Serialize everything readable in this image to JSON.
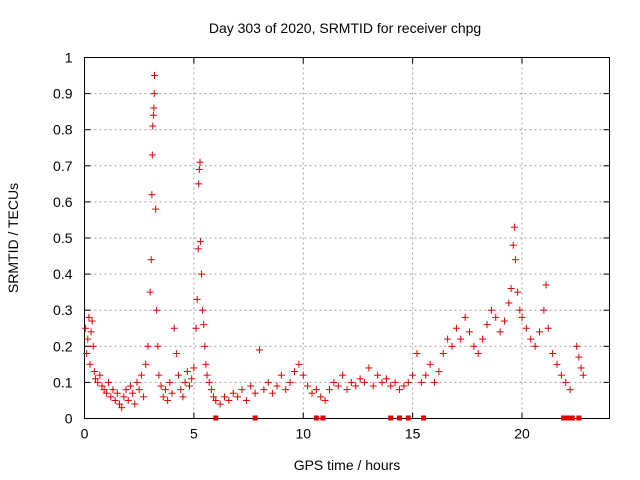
{
  "chart_data": {
    "type": "scatter",
    "title": "Day 303 of 2020, SRMTID for receiver chpg",
    "xlabel": "GPS time / hours",
    "ylabel": "SRMTID / TECUs",
    "xlim": [
      0,
      24
    ],
    "ylim": [
      0,
      1
    ],
    "xticks": [
      0,
      5,
      10,
      15,
      20
    ],
    "xtick_labels": [
      "0",
      "5",
      "10",
      "15",
      "20"
    ],
    "yticks": [
      0,
      0.1,
      0.2,
      0.3,
      0.4,
      0.5,
      0.6,
      0.7,
      0.8,
      0.9,
      1
    ],
    "ytick_labels": [
      "0",
      "0.1",
      "0.2",
      "0.3",
      "0.4",
      "0.5",
      "0.6",
      "0.7",
      "0.8",
      "0.9",
      "1"
    ],
    "grid": true,
    "marker": "+",
    "color": "#e00000",
    "series": [
      {
        "name": "SRMTID",
        "points": [
          [
            0.05,
            0.25
          ],
          [
            0.1,
            0.18
          ],
          [
            0.15,
            0.22
          ],
          [
            0.2,
            0.28
          ],
          [
            0.25,
            0.15
          ],
          [
            0.3,
            0.24
          ],
          [
            0.35,
            0.27
          ],
          [
            0.4,
            0.2
          ],
          [
            0.45,
            0.13
          ],
          [
            0.5,
            0.11
          ],
          [
            0.6,
            0.1
          ],
          [
            0.7,
            0.12
          ],
          [
            0.8,
            0.09
          ],
          [
            0.9,
            0.08
          ],
          [
            1.0,
            0.07
          ],
          [
            1.1,
            0.1
          ],
          [
            1.2,
            0.06
          ],
          [
            1.3,
            0.08
          ],
          [
            1.4,
            0.05
          ],
          [
            1.5,
            0.07
          ],
          [
            1.6,
            0.04
          ],
          [
            1.7,
            0.03
          ],
          [
            1.8,
            0.06
          ],
          [
            1.9,
            0.08
          ],
          [
            2.0,
            0.05
          ],
          [
            2.1,
            0.09
          ],
          [
            2.2,
            0.07
          ],
          [
            2.3,
            0.04
          ],
          [
            2.4,
            0.1
          ],
          [
            2.5,
            0.08
          ],
          [
            2.6,
            0.12
          ],
          [
            2.7,
            0.06
          ],
          [
            2.8,
            0.15
          ],
          [
            2.9,
            0.2
          ],
          [
            3.0,
            0.35
          ],
          [
            3.05,
            0.44
          ],
          [
            3.08,
            0.62
          ],
          [
            3.1,
            0.73
          ],
          [
            3.12,
            0.81
          ],
          [
            3.15,
            0.84
          ],
          [
            3.17,
            0.86
          ],
          [
            3.19,
            0.9
          ],
          [
            3.2,
            0.95
          ],
          [
            3.25,
            0.58
          ],
          [
            3.3,
            0.3
          ],
          [
            3.35,
            0.2
          ],
          [
            3.4,
            0.12
          ],
          [
            3.5,
            0.09
          ],
          [
            3.6,
            0.06
          ],
          [
            3.7,
            0.08
          ],
          [
            3.8,
            0.05
          ],
          [
            3.9,
            0.1
          ],
          [
            4.0,
            0.07
          ],
          [
            4.1,
            0.25
          ],
          [
            4.2,
            0.18
          ],
          [
            4.3,
            0.12
          ],
          [
            4.4,
            0.08
          ],
          [
            4.5,
            0.06
          ],
          [
            4.6,
            0.1
          ],
          [
            4.7,
            0.13
          ],
          [
            4.8,
            0.09
          ],
          [
            4.9,
            0.11
          ],
          [
            5.0,
            0.14
          ],
          [
            5.1,
            0.25
          ],
          [
            5.15,
            0.33
          ],
          [
            5.2,
            0.47
          ],
          [
            5.22,
            0.65
          ],
          [
            5.25,
            0.69
          ],
          [
            5.28,
            0.71
          ],
          [
            5.3,
            0.49
          ],
          [
            5.35,
            0.4
          ],
          [
            5.4,
            0.3
          ],
          [
            5.45,
            0.26
          ],
          [
            5.5,
            0.2
          ],
          [
            5.55,
            0.15
          ],
          [
            5.6,
            0.12
          ],
          [
            5.7,
            0.1
          ],
          [
            5.8,
            0.08
          ],
          [
            5.9,
            0.06
          ],
          [
            6.0,
            0.05
          ],
          [
            6.2,
            0.04
          ],
          [
            6.4,
            0.06
          ],
          [
            6.6,
            0.05
          ],
          [
            6.8,
            0.07
          ],
          [
            7.0,
            0.06
          ],
          [
            7.2,
            0.08
          ],
          [
            7.4,
            0.05
          ],
          [
            7.6,
            0.09
          ],
          [
            7.8,
            0.07
          ],
          [
            8.0,
            0.19
          ],
          [
            8.2,
            0.08
          ],
          [
            8.4,
            0.1
          ],
          [
            8.6,
            0.07
          ],
          [
            8.8,
            0.09
          ],
          [
            9.0,
            0.12
          ],
          [
            9.2,
            0.08
          ],
          [
            9.4,
            0.1
          ],
          [
            9.6,
            0.13
          ],
          [
            9.8,
            0.15
          ],
          [
            10.0,
            0.12
          ],
          [
            10.2,
            0.09
          ],
          [
            10.4,
            0.07
          ],
          [
            10.6,
            0.08
          ],
          [
            10.8,
            0.06
          ],
          [
            11.0,
            0.05
          ],
          [
            11.2,
            0.08
          ],
          [
            11.4,
            0.1
          ],
          [
            11.6,
            0.09
          ],
          [
            11.8,
            0.12
          ],
          [
            12.0,
            0.08
          ],
          [
            12.2,
            0.1
          ],
          [
            12.4,
            0.09
          ],
          [
            12.6,
            0.11
          ],
          [
            12.8,
            0.1
          ],
          [
            13.0,
            0.14
          ],
          [
            13.2,
            0.09
          ],
          [
            13.4,
            0.12
          ],
          [
            13.6,
            0.1
          ],
          [
            13.8,
            0.11
          ],
          [
            14.0,
            0.09
          ],
          [
            14.2,
            0.1
          ],
          [
            14.4,
            0.08
          ],
          [
            14.6,
            0.09
          ],
          [
            14.8,
            0.1
          ],
          [
            15.0,
            0.12
          ],
          [
            15.2,
            0.18
          ],
          [
            15.4,
            0.1
          ],
          [
            15.6,
            0.12
          ],
          [
            15.8,
            0.15
          ],
          [
            16.0,
            0.1
          ],
          [
            16.2,
            0.13
          ],
          [
            16.4,
            0.18
          ],
          [
            16.6,
            0.22
          ],
          [
            16.8,
            0.2
          ],
          [
            17.0,
            0.25
          ],
          [
            17.2,
            0.22
          ],
          [
            17.4,
            0.28
          ],
          [
            17.6,
            0.24
          ],
          [
            17.8,
            0.2
          ],
          [
            18.0,
            0.18
          ],
          [
            18.2,
            0.22
          ],
          [
            18.4,
            0.26
          ],
          [
            18.6,
            0.3
          ],
          [
            18.8,
            0.28
          ],
          [
            19.0,
            0.24
          ],
          [
            19.2,
            0.27
          ],
          [
            19.4,
            0.32
          ],
          [
            19.5,
            0.36
          ],
          [
            19.6,
            0.48
          ],
          [
            19.65,
            0.53
          ],
          [
            19.7,
            0.44
          ],
          [
            19.8,
            0.35
          ],
          [
            19.9,
            0.3
          ],
          [
            20.0,
            0.28
          ],
          [
            20.2,
            0.25
          ],
          [
            20.4,
            0.22
          ],
          [
            20.6,
            0.2
          ],
          [
            20.8,
            0.24
          ],
          [
            21.0,
            0.3
          ],
          [
            21.1,
            0.37
          ],
          [
            21.2,
            0.25
          ],
          [
            21.4,
            0.18
          ],
          [
            21.6,
            0.15
          ],
          [
            21.8,
            0.12
          ],
          [
            22.0,
            0.1
          ],
          [
            22.2,
            0.08
          ],
          [
            22.5,
            0.2
          ],
          [
            22.6,
            0.17
          ],
          [
            22.7,
            0.14
          ],
          [
            22.8,
            0.12
          ]
        ]
      }
    ],
    "zero_markers": [
      6.0,
      7.8,
      10.6,
      10.9,
      14.0,
      14.4,
      14.8,
      15.5,
      21.9,
      22.1,
      22.3,
      22.6
    ]
  }
}
